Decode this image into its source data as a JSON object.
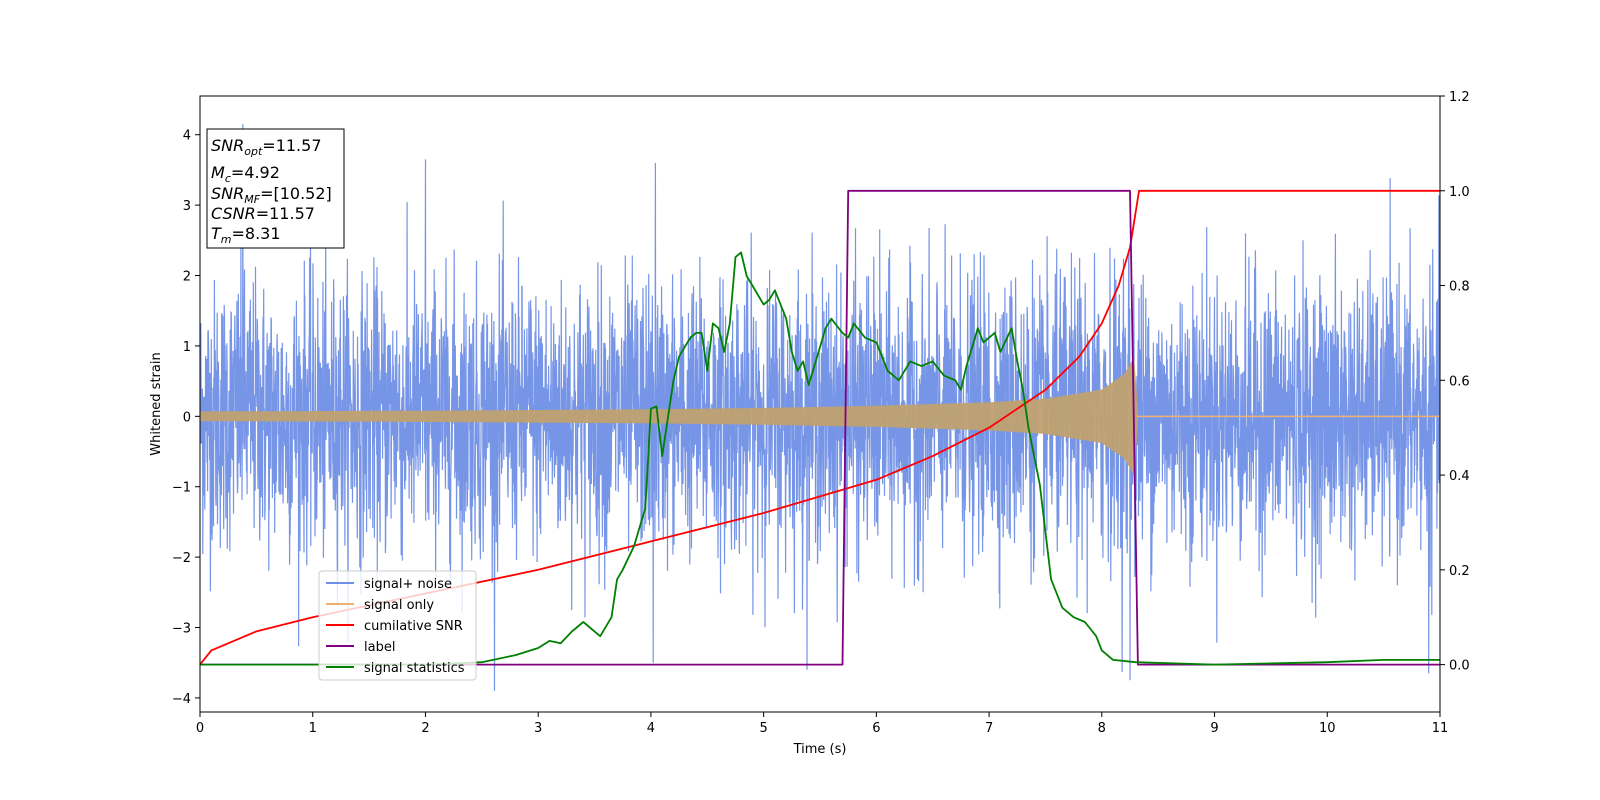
{
  "chart_data": {
    "type": "line",
    "title": "",
    "xlabel": "Time (s)",
    "ylabel": "Whitened strain",
    "y2label": "",
    "xlim": [
      0,
      11
    ],
    "ylim": [
      -4.2,
      4.55
    ],
    "y2lim": [
      -0.1,
      1.2
    ],
    "x_ticks": [
      "0",
      "1",
      "2",
      "3",
      "4",
      "5",
      "6",
      "7",
      "8",
      "9",
      "10",
      "11"
    ],
    "y_ticks": [
      "−4",
      "−3",
      "−2",
      "−1",
      "0",
      "1",
      "2",
      "3",
      "4"
    ],
    "y2_ticks": [
      "0.0",
      "0.2",
      "0.4",
      "0.6",
      "0.8",
      "1.0",
      "1.2"
    ],
    "grid": false,
    "legend_position": "lower-left",
    "series_colors": {
      "signal_noise": "#6f8fe6",
      "signal_only": "#f0b070",
      "cumulative_snr": "#ff0000",
      "label": "#800080",
      "statistics": "#008000"
    },
    "annotation": {
      "snr_opt": {
        "sym": "SNR",
        "sub": "opt",
        "value": "=11.57"
      },
      "mc": {
        "sym": "M",
        "sub": "c",
        "value": "=4.92"
      },
      "snr_mf": {
        "sym": "SNR",
        "sub": "MF",
        "value": "=[10.52]"
      },
      "csnr": {
        "sym": "CSNR",
        "value": "=11.57"
      },
      "tm": {
        "sym": "T",
        "sub": "m",
        "value": "=8.31"
      }
    },
    "series": [
      {
        "name": "signal+ noise",
        "axis": "left",
        "description_stats": {
          "std": 1.0,
          "start": 0,
          "end": 11,
          "peaks": [
            [
              0.38,
              4.15
            ],
            [
              2.0,
              3.65
            ],
            [
              4.04,
              3.6
            ],
            [
              4.02,
              -3.5
            ],
            [
              8.25,
              -3.75
            ],
            [
              10.9,
              -3.65
            ]
          ]
        }
      },
      {
        "name": "signal only",
        "axis": "left",
        "envelope": [
          [
            0,
            0.07
          ],
          [
            2,
            0.08
          ],
          [
            4,
            0.1
          ],
          [
            5,
            0.12
          ],
          [
            6,
            0.15
          ],
          [
            7,
            0.2
          ],
          [
            7.5,
            0.25
          ],
          [
            8,
            0.38
          ],
          [
            8.2,
            0.6
          ],
          [
            8.3,
            0.88
          ],
          [
            8.31,
            0.0
          ],
          [
            11,
            0.0
          ]
        ]
      },
      {
        "name": "cumilative SNR",
        "axis": "right",
        "points": [
          [
            0,
            0.0
          ],
          [
            0.1,
            0.03
          ],
          [
            0.5,
            0.07
          ],
          [
            1,
            0.1
          ],
          [
            2,
            0.15
          ],
          [
            3,
            0.2
          ],
          [
            4,
            0.26
          ],
          [
            5,
            0.32
          ],
          [
            6,
            0.39
          ],
          [
            6.5,
            0.44
          ],
          [
            7,
            0.5
          ],
          [
            7.5,
            0.58
          ],
          [
            7.8,
            0.65
          ],
          [
            8,
            0.72
          ],
          [
            8.15,
            0.8
          ],
          [
            8.25,
            0.88
          ],
          [
            8.31,
            0.97
          ],
          [
            8.33,
            1.0
          ],
          [
            11,
            1.0
          ]
        ]
      },
      {
        "name": "label",
        "axis": "right",
        "points": [
          [
            0,
            0.0
          ],
          [
            5.7,
            0.0
          ],
          [
            5.75,
            1.0
          ],
          [
            8.25,
            1.0
          ],
          [
            8.32,
            0.0
          ],
          [
            11,
            0.0
          ]
        ]
      },
      {
        "name": "signal statistics",
        "axis": "right",
        "points": [
          [
            0,
            0.0
          ],
          [
            0.5,
            0.0
          ],
          [
            1,
            0.0
          ],
          [
            2,
            0.0
          ],
          [
            2.5,
            0.005
          ],
          [
            2.8,
            0.02
          ],
          [
            3.0,
            0.035
          ],
          [
            3.1,
            0.05
          ],
          [
            3.2,
            0.045
          ],
          [
            3.3,
            0.07
          ],
          [
            3.4,
            0.09
          ],
          [
            3.55,
            0.06
          ],
          [
            3.65,
            0.1
          ],
          [
            3.7,
            0.18
          ],
          [
            3.75,
            0.2
          ],
          [
            3.85,
            0.25
          ],
          [
            3.95,
            0.33
          ],
          [
            4.0,
            0.54
          ],
          [
            4.05,
            0.545
          ],
          [
            4.1,
            0.44
          ],
          [
            4.2,
            0.6
          ],
          [
            4.25,
            0.65
          ],
          [
            4.3,
            0.67
          ],
          [
            4.35,
            0.69
          ],
          [
            4.4,
            0.7
          ],
          [
            4.45,
            0.7
          ],
          [
            4.5,
            0.62
          ],
          [
            4.55,
            0.72
          ],
          [
            4.6,
            0.71
          ],
          [
            4.65,
            0.66
          ],
          [
            4.7,
            0.72
          ],
          [
            4.75,
            0.86
          ],
          [
            4.8,
            0.87
          ],
          [
            4.85,
            0.82
          ],
          [
            4.9,
            0.8
          ],
          [
            5.0,
            0.76
          ],
          [
            5.05,
            0.77
          ],
          [
            5.1,
            0.79
          ],
          [
            5.2,
            0.73
          ],
          [
            5.25,
            0.66
          ],
          [
            5.3,
            0.62
          ],
          [
            5.35,
            0.64
          ],
          [
            5.4,
            0.59
          ],
          [
            5.5,
            0.67
          ],
          [
            5.55,
            0.71
          ],
          [
            5.6,
            0.73
          ],
          [
            5.7,
            0.7
          ],
          [
            5.75,
            0.69
          ],
          [
            5.8,
            0.72
          ],
          [
            5.9,
            0.69
          ],
          [
            6.0,
            0.68
          ],
          [
            6.1,
            0.62
          ],
          [
            6.2,
            0.6
          ],
          [
            6.3,
            0.64
          ],
          [
            6.4,
            0.63
          ],
          [
            6.5,
            0.64
          ],
          [
            6.6,
            0.61
          ],
          [
            6.7,
            0.6
          ],
          [
            6.75,
            0.58
          ],
          [
            6.8,
            0.63
          ],
          [
            6.9,
            0.71
          ],
          [
            6.95,
            0.68
          ],
          [
            7.05,
            0.7
          ],
          [
            7.1,
            0.66
          ],
          [
            7.2,
            0.71
          ],
          [
            7.25,
            0.64
          ],
          [
            7.3,
            0.58
          ],
          [
            7.35,
            0.5
          ],
          [
            7.45,
            0.38
          ],
          [
            7.55,
            0.18
          ],
          [
            7.65,
            0.12
          ],
          [
            7.75,
            0.1
          ],
          [
            7.85,
            0.09
          ],
          [
            7.95,
            0.06
          ],
          [
            8.0,
            0.03
          ],
          [
            8.1,
            0.01
          ],
          [
            8.3,
            0.005
          ],
          [
            9.0,
            0.0
          ],
          [
            10.0,
            0.005
          ],
          [
            10.5,
            0.01
          ],
          [
            11,
            0.01
          ]
        ]
      }
    ]
  }
}
